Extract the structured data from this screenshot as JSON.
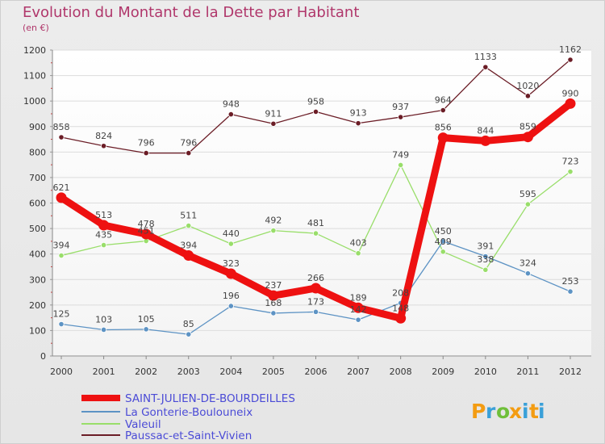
{
  "title": "Evolution du Montant de la Dette par Habitant",
  "subtitle": "(en €)",
  "logo": {
    "letters": [
      "P",
      "r",
      "o",
      "x",
      "i",
      "t",
      "i"
    ],
    "colors": [
      "#f39c12",
      "#3aa0d8",
      "#6fbf3a",
      "#f39c12",
      "#3aa0d8",
      "#f39c12",
      "#3aa0d8"
    ]
  },
  "chart_data": {
    "type": "line",
    "categories": [
      "2000",
      "2001",
      "2002",
      "2003",
      "2004",
      "2005",
      "2006",
      "2007",
      "2008",
      "2009",
      "2010",
      "2011",
      "2012"
    ],
    "ylim": [
      0,
      1200
    ],
    "yticks": [
      "0",
      "100",
      "200",
      "300",
      "400",
      "500",
      "600",
      "700",
      "800",
      "900",
      "1000",
      "1100",
      "1200"
    ],
    "grid": "horizontal",
    "legend": "bottom-left",
    "series": [
      {
        "name": "SAINT-JULIEN-DE-BOURDEILLES",
        "color": "#ee1111",
        "values": [
          621,
          513,
          478,
          394,
          323,
          237,
          266,
          189,
          148,
          856,
          844,
          859,
          990
        ],
        "labels": [
          "621",
          "513",
          "478",
          "394",
          "323",
          "237",
          "266",
          "189",
          "148",
          "856",
          "844",
          "859",
          "990"
        ]
      },
      {
        "name": "La Gonterie-Boulouneix",
        "color": "#5d93c4",
        "values": [
          125,
          103,
          105,
          85,
          196,
          168,
          173,
          142,
          208,
          450,
          391,
          324,
          253
        ],
        "labels": [
          "125",
          "103",
          "105",
          "85",
          "196",
          "168",
          "173",
          "142",
          "208",
          "450",
          "391",
          "324",
          "253"
        ]
      },
      {
        "name": "Valeuil",
        "color": "#99de6a",
        "values": [
          394,
          435,
          451,
          511,
          440,
          492,
          481,
          403,
          749,
          409,
          338,
          595,
          723
        ],
        "labels": [
          "394",
          "435",
          "451",
          "511",
          "440",
          "492",
          "481",
          "403",
          "749",
          "409",
          "338",
          "595",
          "723"
        ]
      },
      {
        "name": "Paussac-et-Saint-Vivien",
        "color": "#6b1d26",
        "values": [
          858,
          824,
          796,
          796,
          948,
          911,
          958,
          913,
          937,
          964,
          1133,
          1020,
          1162
        ],
        "labels": [
          "858",
          "824",
          "796",
          "796",
          "948",
          "911",
          "958",
          "913",
          "937",
          "964",
          "1133",
          "1020",
          "1162"
        ]
      }
    ]
  }
}
